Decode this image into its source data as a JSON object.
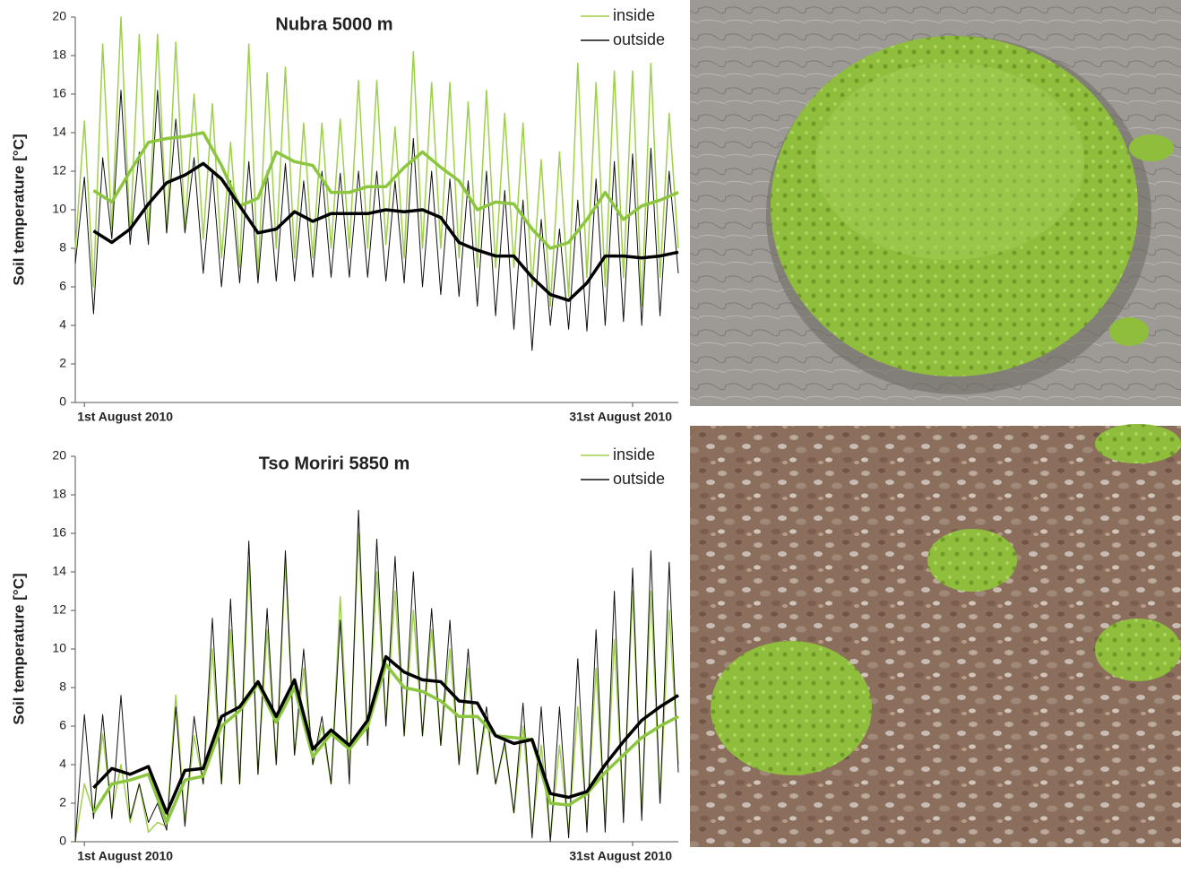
{
  "chart_data": [
    {
      "type": "line",
      "title": "Nubra 5000 m",
      "ylabel": "Soil temperature [°C]",
      "xlim": [
        0.5,
        33.5
      ],
      "xticks": [
        {
          "value": 1,
          "label": "1st August 2010"
        },
        {
          "value": 31,
          "label": "31st August 2010"
        }
      ],
      "ylim": [
        0,
        20
      ],
      "yticks": [
        0,
        2,
        4,
        6,
        8,
        10,
        12,
        14,
        16,
        18,
        20
      ],
      "legend": "upper right",
      "x": [
        0.5,
        1,
        1.5,
        2,
        2.5,
        3,
        3.5,
        4,
        4.5,
        5,
        5.5,
        6,
        6.5,
        7,
        7.5,
        8,
        8.5,
        9,
        9.5,
        10,
        10.5,
        11,
        11.5,
        12,
        12.5,
        13,
        13.5,
        14,
        14.5,
        15,
        15.5,
        16,
        16.5,
        17,
        17.5,
        18,
        18.5,
        19,
        19.5,
        20,
        20.5,
        21,
        21.5,
        22,
        22.5,
        23,
        23.5,
        24,
        24.5,
        25,
        25.5,
        26,
        26.5,
        27,
        27.5,
        28,
        28.5,
        29,
        29.5,
        30,
        30.5,
        31,
        31.5,
        32,
        32.5,
        33,
        33.5
      ],
      "series": [
        {
          "name": "inside",
          "color": "#9fd04c",
          "width": 1.5,
          "values": [
            8.0,
            14.6,
            6.0,
            18.6,
            9.0,
            20.0,
            8.5,
            19.1,
            8.5,
            19.1,
            8.8,
            18.7,
            9.0,
            16.0,
            8.5,
            15.5,
            7.5,
            13.5,
            7.0,
            18.6,
            6.5,
            17.1,
            8.0,
            17.4,
            7.5,
            14.5,
            7.5,
            14.5,
            8.0,
            14.7,
            8.0,
            16.7,
            8.0,
            16.7,
            8.2,
            14.3,
            7.5,
            18.2,
            8.0,
            16.6,
            8.0,
            16.6,
            7.5,
            15.6,
            7.0,
            16.2,
            7.0,
            15.0,
            7.0,
            14.5,
            6.0,
            12.6,
            5.0,
            13.0,
            5.5,
            17.6,
            6.5,
            16.6,
            6.0,
            17.2,
            6.5,
            17.2,
            5.0,
            17.6,
            6.5,
            15.0,
            8.0
          ]
        },
        {
          "name": "outside",
          "color": "#111111",
          "width": 1,
          "values": [
            7.2,
            11.7,
            4.6,
            12.7,
            8.5,
            16.2,
            8.2,
            13.0,
            8.2,
            16.2,
            8.8,
            14.7,
            8.8,
            12.7,
            6.7,
            12.0,
            6.0,
            11.5,
            6.2,
            12.5,
            6.2,
            12.0,
            6.3,
            12.4,
            6.3,
            11.5,
            6.5,
            12.0,
            6.5,
            11.9,
            6.5,
            12.0,
            6.5,
            12.0,
            6.3,
            11.5,
            6.2,
            13.7,
            6.0,
            12.0,
            5.6,
            11.6,
            5.5,
            11.5,
            5.0,
            12.0,
            4.5,
            11.0,
            3.8,
            10.5,
            2.7,
            9.5,
            4.0,
            9.0,
            3.8,
            10.5,
            3.7,
            11.6,
            4.0,
            12.5,
            4.2,
            12.9,
            4.0,
            13.2,
            4.5,
            12.0,
            6.7
          ]
        },
        {
          "color": "#8cc63f",
          "width": 3.5,
          "x": [
            1.5,
            2.5,
            3.5,
            4.5,
            5.5,
            6.5,
            7.5,
            8.5,
            9.5,
            10.5,
            11.5,
            12.5,
            13.5,
            14.5,
            15.5,
            16.5,
            17.5,
            18.5,
            19.5,
            20.5,
            21.5,
            22.5,
            23.5,
            24.5,
            25.5,
            26.5,
            27.5,
            28.5,
            29.5,
            30.5,
            31.5,
            32.5,
            33.5
          ],
          "values": [
            11.0,
            10.4,
            12.0,
            13.5,
            13.7,
            13.8,
            14.0,
            12.3,
            10.2,
            10.6,
            13.0,
            12.5,
            12.3,
            10.9,
            10.9,
            11.2,
            11.2,
            12.2,
            13.0,
            12.2,
            11.5,
            10.0,
            10.4,
            10.3,
            9.0,
            8.0,
            8.3,
            9.5,
            10.9,
            9.5,
            10.2,
            10.5,
            10.9
          ]
        },
        {
          "color": "#000000",
          "width": 3.5,
          "x": [
            1.5,
            2.5,
            3.5,
            4.5,
            5.5,
            6.5,
            7.5,
            8.5,
            9.5,
            10.5,
            11.5,
            12.5,
            13.5,
            14.5,
            15.5,
            16.5,
            17.5,
            18.5,
            19.5,
            20.5,
            21.5,
            22.5,
            23.5,
            24.5,
            25.5,
            26.5,
            27.5,
            28.5,
            29.5,
            30.5,
            31.5,
            32.5,
            33.5
          ],
          "values": [
            8.9,
            8.3,
            9.0,
            10.3,
            11.4,
            11.8,
            12.4,
            11.6,
            10.2,
            8.8,
            9.0,
            9.9,
            9.4,
            9.8,
            9.8,
            9.8,
            10.0,
            9.9,
            10.0,
            9.6,
            8.3,
            7.9,
            7.6,
            7.6,
            6.5,
            5.6,
            5.3,
            6.2,
            7.6,
            7.6,
            7.5,
            7.6,
            7.8
          ]
        }
      ]
    },
    {
      "type": "line",
      "title": "Tso Moriri 5850 m",
      "ylabel": "Soil temperature [°C]",
      "xlim": [
        0.5,
        33.5
      ],
      "xticks": [
        {
          "value": 1,
          "label": "1st August 2010"
        },
        {
          "value": 31,
          "label": "31st August 2010"
        }
      ],
      "ylim": [
        0,
        20
      ],
      "yticks": [
        0,
        2,
        4,
        6,
        8,
        10,
        12,
        14,
        16,
        18,
        20
      ],
      "legend": "upper right",
      "x": [
        0.5,
        1,
        1.5,
        2,
        2.5,
        3,
        3.5,
        4,
        4.5,
        5,
        5.5,
        6,
        6.5,
        7,
        7.5,
        8,
        8.5,
        9,
        9.5,
        10,
        10.5,
        11,
        11.5,
        12,
        12.5,
        13,
        13.5,
        14,
        14.5,
        15,
        15.5,
        16,
        16.5,
        17,
        17.5,
        18,
        18.5,
        19,
        19.5,
        20,
        20.5,
        21,
        21.5,
        22,
        22.5,
        23,
        23.5,
        24,
        24.5,
        25,
        25.5,
        26,
        26.5,
        27,
        27.5,
        28,
        28.5,
        29,
        29.5,
        30,
        30.5,
        31,
        31.5,
        32,
        32.5,
        33,
        33.5
      ],
      "series": [
        {
          "name": "inside",
          "color": "#9fd04c",
          "width": 1.5,
          "values": [
            0,
            3.0,
            1.5,
            5.6,
            1.5,
            4.0,
            1.0,
            3.0,
            0.5,
            1.0,
            0.8,
            7.6,
            1.0,
            5.5,
            3.0,
            10.0,
            3.0,
            11.0,
            3.0,
            14.5,
            3.5,
            11.0,
            4.0,
            14.5,
            4.5,
            9.0,
            4.0,
            6.0,
            3.0,
            12.7,
            3.5,
            16.0,
            5.0,
            14.0,
            6.0,
            13.0,
            5.5,
            12.0,
            5.5,
            11.0,
            5.0,
            10.0,
            4.0,
            9.0,
            3.5,
            6.5,
            3.0,
            5.0,
            1.5,
            6.0,
            0.5,
            5.0,
            0.2,
            5.0,
            0.5,
            7.0,
            1.0,
            9.0,
            1.0,
            10.5,
            1.5,
            13.0,
            1.5,
            13.0,
            2.0,
            12.0,
            4.0
          ]
        },
        {
          "name": "outside",
          "color": "#111111",
          "width": 1,
          "values": [
            0,
            6.6,
            1.2,
            6.6,
            1.2,
            7.6,
            1.2,
            3.0,
            1.0,
            2.0,
            0.6,
            7.0,
            0.8,
            6.5,
            3.0,
            11.6,
            3.0,
            12.6,
            3.0,
            15.6,
            3.5,
            12.1,
            4.0,
            15.1,
            4.5,
            10.0,
            4.0,
            6.5,
            3.0,
            11.5,
            3.0,
            17.2,
            5.0,
            15.7,
            6.0,
            14.8,
            5.5,
            14.0,
            5.5,
            12.1,
            5.0,
            11.5,
            4.0,
            10.0,
            3.5,
            7.0,
            3.0,
            5.2,
            1.5,
            7.2,
            0.2,
            7.0,
            0,
            7.0,
            0.2,
            9.5,
            0.5,
            11.0,
            0.5,
            13.0,
            1.0,
            14.2,
            1.1,
            15.1,
            2.0,
            14.5,
            3.6
          ]
        },
        {
          "color": "#8cc63f",
          "width": 3.5,
          "x": [
            1.5,
            2.5,
            3.5,
            4.5,
            5.5,
            6.5,
            7.5,
            8.5,
            9.5,
            10.5,
            11.5,
            12.5,
            13.5,
            14.5,
            15.5,
            16.5,
            17.5,
            18.5,
            19.5,
            20.5,
            21.5,
            22.5,
            23.5,
            24.5,
            25.5,
            26.5,
            27.5,
            28.5,
            29.5,
            30.5,
            31.5,
            32.5,
            33.5
          ],
          "values": [
            1.5,
            3.0,
            3.2,
            3.5,
            1.0,
            3.2,
            3.4,
            6.0,
            6.8,
            8.2,
            6.2,
            8.0,
            4.4,
            5.6,
            4.8,
            6.0,
            9.2,
            8.0,
            7.8,
            7.3,
            6.5,
            6.5,
            5.5,
            5.4,
            5.3,
            2.0,
            1.9,
            2.5,
            3.6,
            4.5,
            5.4,
            6.0,
            6.5
          ]
        },
        {
          "color": "#000000",
          "width": 3.5,
          "x": [
            1.5,
            2.5,
            3.5,
            4.5,
            5.5,
            6.5,
            7.5,
            8.5,
            9.5,
            10.5,
            11.5,
            12.5,
            13.5,
            14.5,
            15.5,
            16.5,
            17.5,
            18.5,
            19.5,
            20.5,
            21.5,
            22.5,
            23.5,
            24.5,
            25.5,
            26.5,
            27.5,
            28.5,
            29.5,
            30.5,
            31.5,
            32.5,
            33.5
          ],
          "values": [
            2.8,
            3.8,
            3.5,
            3.9,
            1.5,
            3.7,
            3.8,
            6.5,
            7.0,
            8.3,
            6.5,
            8.4,
            4.8,
            5.8,
            5.0,
            6.3,
            9.6,
            8.8,
            8.4,
            8.3,
            7.3,
            7.2,
            5.5,
            5.1,
            5.3,
            2.5,
            2.3,
            2.6,
            4.0,
            5.2,
            6.3,
            7.0,
            7.6
          ]
        }
      ]
    }
  ]
}
